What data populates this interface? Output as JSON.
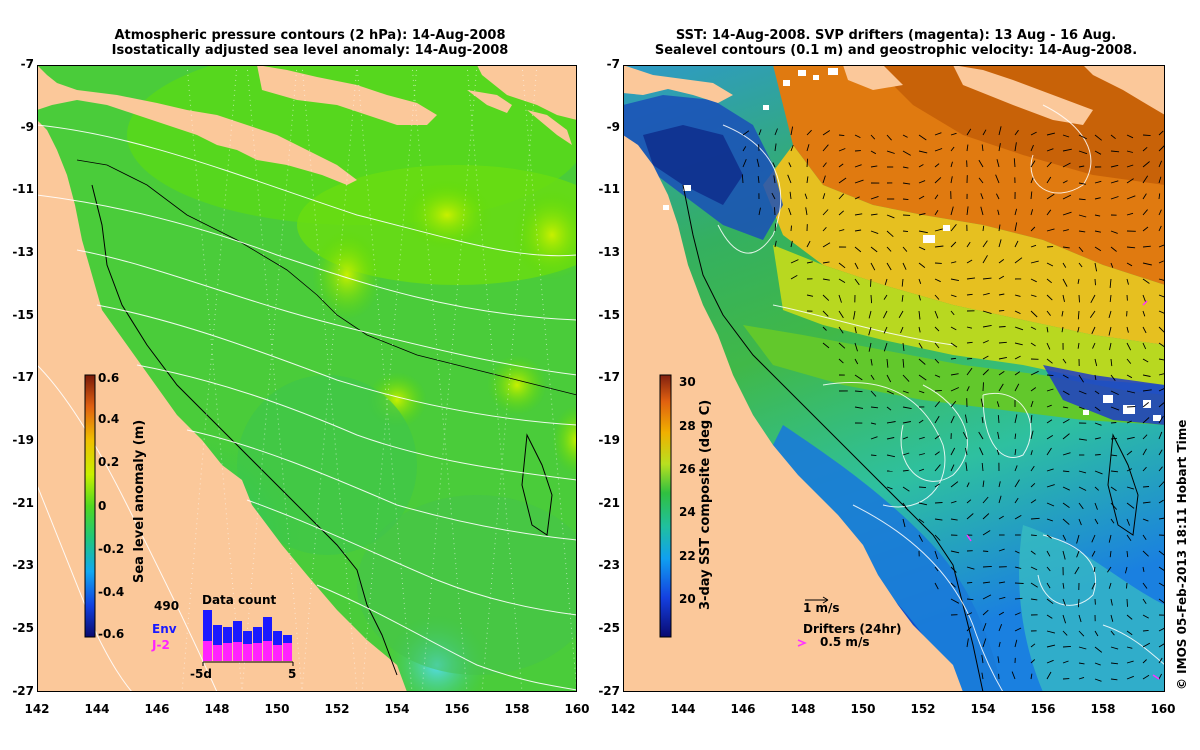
{
  "left": {
    "title_line1": "Atmospheric pressure contours (2 hPa): 14-Aug-2008",
    "title_line2": "Isostatically adjusted sea level anomaly: 14-Aug-2008",
    "yticks": [
      "-7",
      "-9",
      "-11",
      "-13",
      "-15",
      "-17",
      "-19",
      "-21",
      "-23",
      "-25",
      "-27"
    ],
    "xticks": [
      "142",
      "144",
      "146",
      "148",
      "150",
      "152",
      "154",
      "156",
      "158",
      "160"
    ],
    "colorbar": {
      "label": "Sea level anomaly (m)",
      "ticks": [
        "0.6",
        "0.4",
        "0.2",
        "0",
        "-0.2",
        "-0.4",
        "-0.6"
      ],
      "range": [
        -0.6,
        0.6
      ]
    },
    "inset": {
      "title": "Data count",
      "count": "490",
      "env_label": "Env",
      "j2_label": "J-2",
      "x_start": "-5d",
      "x_end": "5",
      "env_color": "#1a1aff",
      "j2_color": "#ff22ff"
    }
  },
  "right": {
    "title_line1": "SST: 14-Aug-2008. SVP drifters (magenta): 13 Aug - 16 Aug.",
    "title_line2": "Sealevel contours (0.1 m) and geostrophic velocity: 14-Aug-2008.",
    "yticks": [
      "-7",
      "-9",
      "-11",
      "-13",
      "-15",
      "-17",
      "-19",
      "-21",
      "-23",
      "-25",
      "-27"
    ],
    "xticks": [
      "142",
      "144",
      "146",
      "148",
      "150",
      "152",
      "154",
      "156",
      "158",
      "160"
    ],
    "colorbar": {
      "label": "3-day SST composite (deg C)",
      "ticks": [
        "30",
        "28",
        "26",
        "24",
        "22",
        "20"
      ],
      "range": [
        19,
        31
      ]
    },
    "scale_arrow_label": "1 m/s",
    "drifters_label": "Drifters (24hr)",
    "drifter_speed_label": "0.5 m/s",
    "drifter_color": "#ff33ff"
  },
  "credit": "© IMOS 05-Feb-2013 18:11 Hobart Time",
  "colors": {
    "land": "#fbc89a",
    "background": "#ffffff"
  }
}
